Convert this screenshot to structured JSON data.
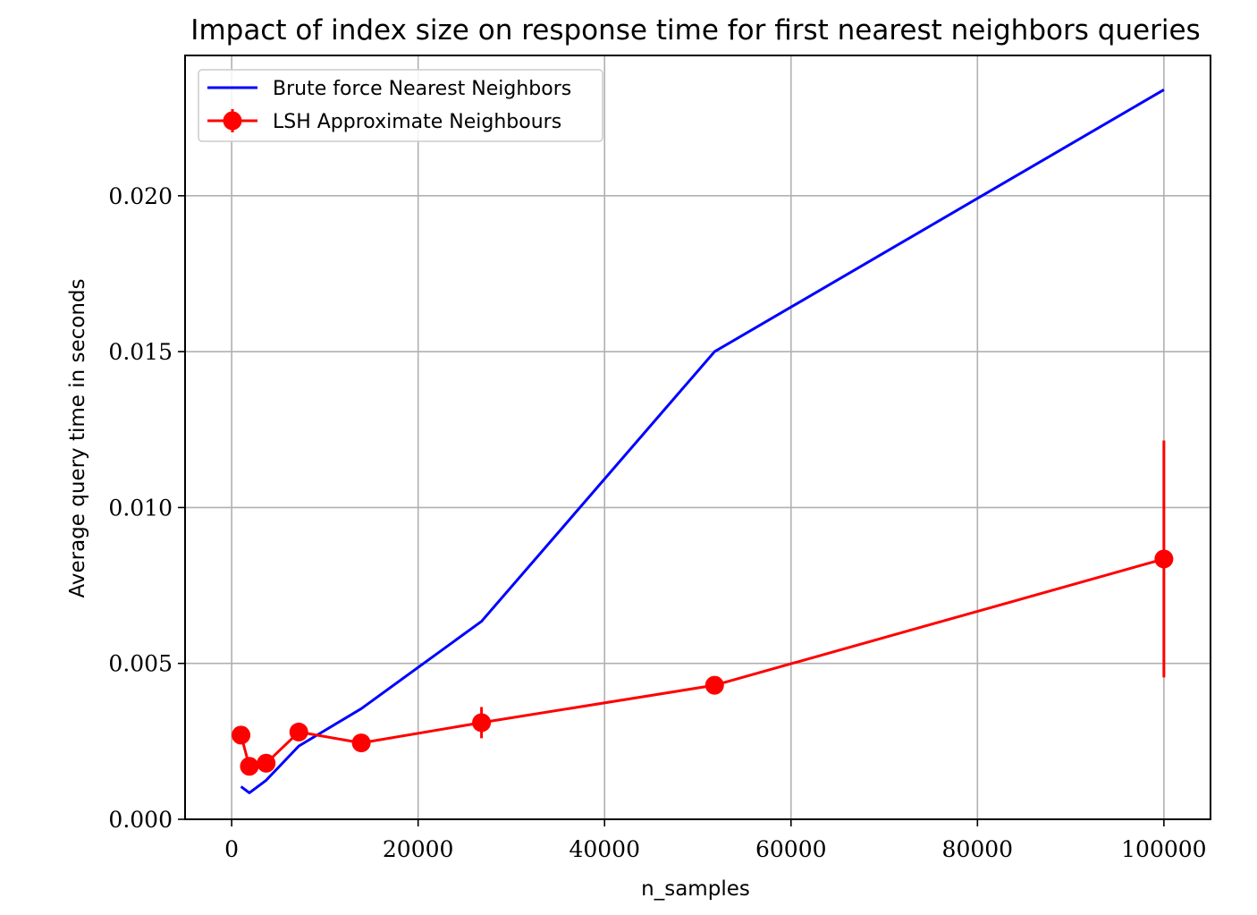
{
  "chart_data": {
    "type": "line",
    "title": "Impact of index size on response time for first nearest neighbors queries",
    "xlabel": "n_samples",
    "ylabel": "Average query time in seconds",
    "xlim": [
      -5000,
      105000
    ],
    "ylim": [
      0,
      0.0245
    ],
    "xticks": [
      0,
      20000,
      40000,
      60000,
      80000,
      100000
    ],
    "xtick_labels": [
      "0",
      "20000",
      "40000",
      "60000",
      "80000",
      "100000"
    ],
    "yticks": [
      0,
      0.005,
      0.01,
      0.015,
      0.02
    ],
    "ytick_labels": [
      "0.000",
      "0.005",
      "0.010",
      "0.015",
      "0.020"
    ],
    "grid": true,
    "legend_position": "top-left",
    "series": [
      {
        "name": "Brute force Nearest Neighbors",
        "color": "#0000ff",
        "marker": "none",
        "x": [
          1000,
          1900,
          3700,
          7200,
          13900,
          26800,
          51800,
          100000
        ],
        "y": [
          0.00105,
          0.00085,
          0.00125,
          0.00235,
          0.00355,
          0.00635,
          0.015,
          0.0234
        ],
        "yerr": null
      },
      {
        "name": "LSH Approximate Neighbours",
        "color": "#ff0000",
        "marker": "o",
        "x": [
          1000,
          1900,
          3700,
          7200,
          13900,
          26800,
          51800,
          100000
        ],
        "y": [
          0.0027,
          0.0017,
          0.0018,
          0.0028,
          0.00245,
          0.0031,
          0.0043,
          0.00835
        ],
        "yerr": [
          0.0001,
          0.0001,
          0.0001,
          0.0001,
          0.0001,
          0.0005,
          0.0002,
          0.0038
        ]
      }
    ]
  }
}
